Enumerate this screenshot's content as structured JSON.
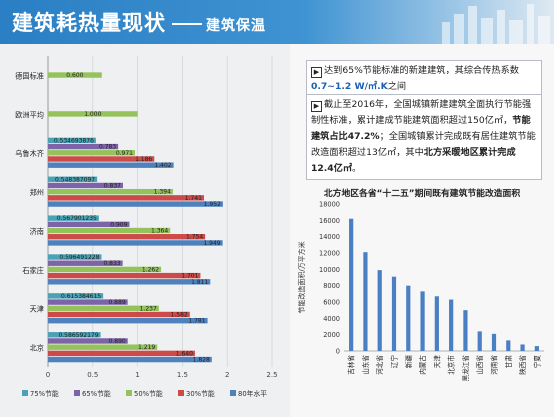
{
  "header": {
    "title": "建筑耗热量现状",
    "subtitle": "建筑保温"
  },
  "notes": {
    "note1": {
      "part1": "达到65%节能标准的新建建筑，其综合传热系数",
      "highlight": "0.7~1.2 W/㎡.K",
      "part2": "之间"
    },
    "note2": {
      "part1": "截止至2016年，全国城镇新建建筑全面执行节能强制性标准，累计建成节能建筑面积超过150亿㎡，",
      "bold1": "节能建筑占比47.2%",
      "part2": "；全国城镇累计完成既有居住建筑节能改造面积超过13亿㎡，其中",
      "bold2": "北方采暖地区累计完成12.4亿㎡",
      "part3": "。"
    }
  },
  "chart_data": [
    {
      "type": "bar",
      "orientation": "horizontal",
      "categories": [
        "德国标准",
        "欧洲平均",
        "乌鲁木齐",
        "郑州",
        "济南",
        "石家庄",
        "天津",
        "北京"
      ],
      "series": [
        {
          "name": "75%节能",
          "color": "#4aa3b5",
          "values": [
            null,
            null,
            0.534693876,
            0.548387097,
            0.567901235,
            0.596491228,
            0.615384615,
            0.586592179
          ]
        },
        {
          "name": "65%节能",
          "color": "#7d63a8",
          "values": [
            null,
            null,
            0.783,
            0.837,
            0.909,
            0.833,
            0.889,
            0.89
          ]
        },
        {
          "name": "50%节能",
          "color": "#93c35a",
          "values": [
            0.6,
            1.0,
            0.971,
            1.394,
            1.364,
            1.262,
            1.237,
            1.219
          ]
        },
        {
          "name": "30%节能",
          "color": "#cc4a47",
          "values": [
            null,
            null,
            1.186,
            1.741,
            1.754,
            1.701,
            1.582,
            1.64
          ]
        },
        {
          "name": "80年水平",
          "color": "#4f81bd",
          "values": [
            null,
            null,
            1.402,
            1.952,
            1.949,
            1.811,
            1.781,
            1.828
          ]
        }
      ],
      "value_labels": {
        "德国标准": [
          "",
          "",
          "0.600",
          "",
          ""
        ],
        "欧洲平均": [
          "",
          "",
          "1.000",
          "",
          ""
        ],
        "乌鲁木齐": [
          "0.534693876",
          "0.783",
          "0.971",
          "1.186",
          "1.402"
        ],
        "郑州": [
          "0.548387097",
          "0.837",
          "1.394",
          "1.741",
          "1.952"
        ],
        "济南": [
          "0.567901235",
          "0.909",
          "1.364",
          "1.754",
          "1.949"
        ],
        "石家庄": [
          "0.596491228",
          "0.833",
          "1.262",
          "1.701",
          "1.811"
        ],
        "天津": [
          "0.615384615",
          "0.889",
          "1.237",
          "1.582",
          "1.781"
        ],
        "北京": [
          "0.586592179",
          "0.890",
          "1.219",
          "1.640",
          "1.828"
        ]
      },
      "x_ticks": [
        "0",
        "0.5",
        "1",
        "1.5",
        "2",
        "2.5"
      ],
      "xlim": [
        0,
        2.5
      ],
      "grid": true,
      "legend": "bottom"
    },
    {
      "type": "bar",
      "title": "北方地区各省“十二五”期间既有建筑节能改造面积",
      "ylabel": "节能改造面积/万平方米",
      "categories": [
        "吉林省",
        "山东省",
        "河北省",
        "辽宁",
        "新疆",
        "内蒙古",
        "天津",
        "北京市",
        "黑龙江省",
        "山西省",
        "河南省",
        "甘肃",
        "陕西省",
        "宁夏"
      ],
      "values": [
        16200,
        12100,
        9900,
        9100,
        8000,
        7300,
        6700,
        6300,
        5000,
        2400,
        2100,
        1300,
        800,
        600
      ],
      "y_ticks": [
        "0",
        "2000",
        "4000",
        "6000",
        "8000",
        "10000",
        "12000",
        "14000",
        "16000",
        "18000"
      ],
      "ylim": [
        0,
        18000
      ],
      "color": "#4a7fc3"
    }
  ]
}
